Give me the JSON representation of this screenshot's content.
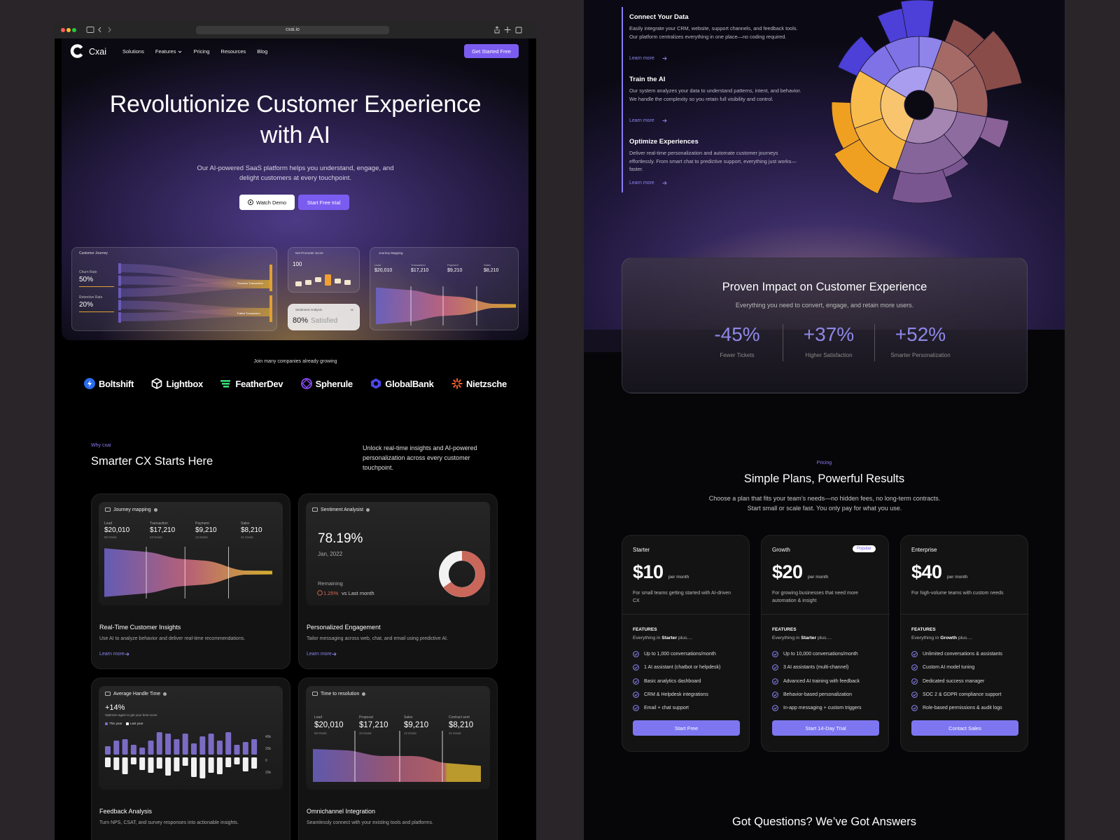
{
  "browser": {
    "url": "cxai.io"
  },
  "nav": {
    "brand": "Cxai",
    "links": [
      "Solutions",
      "Features",
      "Pricing",
      "Resources",
      "Blog"
    ],
    "cta": "Get Started Free"
  },
  "hero": {
    "title_line1": "Revolutionize Customer Experience",
    "title_line2": "with AI",
    "subtitle": "Our AI-powered SaaS platform helps you understand, engage, and delight customers at every touchpoint.",
    "demo_button": "Watch Demo",
    "trial_button": "Start Free trial"
  },
  "hero_widgets": {
    "journey": {
      "title": "Customer Journey",
      "metrics": [
        {
          "label": "Churn Rate",
          "value": "50%"
        },
        {
          "label": "Retention Rate",
          "value": "20%"
        }
      ],
      "outcomes": [
        "Success Transaction",
        "Failed Transaction"
      ]
    },
    "nps": {
      "title": "Net Promoter Score",
      "value": "100"
    },
    "sentiment": {
      "title": "Sentiment Analysis",
      "value": "80%",
      "label": "Satisfied",
      "extra": "+5"
    },
    "mapping": {
      "title": "Journey Mapping",
      "stages": [
        {
          "label": "Lead",
          "value": "$20,010"
        },
        {
          "label": "Transaction",
          "value": "$17,210"
        },
        {
          "label": "Payment",
          "value": "$9,210"
        },
        {
          "label": "Sales",
          "value": "$8,210"
        }
      ]
    }
  },
  "logos": {
    "caption": "Join many companies already growing",
    "companies": [
      "Boltshift",
      "Lightbox",
      "FeatherDev",
      "Spherule",
      "GlobalBank",
      "Nietzsche"
    ]
  },
  "why": {
    "eyebrow": "Why cxai",
    "title": "Smarter CX Starts Here",
    "description": "Unlock real-time insights and AI-powered personalization across every customer touchpoint."
  },
  "features": [
    {
      "widget": {
        "title": "Journey mapping",
        "stages": [
          {
            "label": "Lead",
            "value": "$20,010",
            "note": "80 Deals"
          },
          {
            "label": "Transaction",
            "value": "$17,210",
            "note": "23 Deals"
          },
          {
            "label": "Payment",
            "value": "$9,210",
            "note": "12 Deals"
          },
          {
            "label": "Sales",
            "value": "$8,210",
            "note": "21 Deals"
          }
        ]
      },
      "title": "Real-Time Customer Insights",
      "description": "Use AI to analyze behavior and deliver real-time recommendations.",
      "link": "Learn more"
    },
    {
      "widget": {
        "title": "Sentiment Analysist",
        "value": "78.19%",
        "date": "Jan, 2022",
        "remaining": "Remaining",
        "change": "1.25%",
        "comparison": "vs Last month"
      },
      "title": "Personalized Engagement",
      "description": "Tailor messaging across web, chat, and email using predictive AI.",
      "link": "Learn more"
    },
    {
      "widget": {
        "title": "Average Handle Time",
        "value": "+14%",
        "hint": "Optimize again to get your best score",
        "legend": [
          "This year",
          "Last year"
        ],
        "axis": [
          "40k",
          "20k",
          "0",
          "20k"
        ]
      },
      "title": "Feedback Analysis",
      "description": "Turn NPS, CSAT, and survey responses into actionable insights."
    },
    {
      "widget": {
        "title": "Time to resolution",
        "stages": [
          {
            "label": "Lead",
            "value": "$20,010",
            "note": "80 Deals"
          },
          {
            "label": "Proposal",
            "value": "$17,210",
            "note": "23 Deals"
          },
          {
            "label": "Sales",
            "value": "$9,210",
            "note": "12 Deals"
          },
          {
            "label": "Contract sent",
            "value": "$8,210",
            "note": "21 Deals"
          }
        ]
      },
      "title": "Omnichannel Integration",
      "description": "Seamlessly connect with your existing tools and platforms."
    }
  ],
  "steps": [
    {
      "title": "Connect Your Data",
      "text": "Easily integrate your CRM, website, support channels, and feedback tools. Our platform centralizes everything in one place—no coding required.",
      "link": "Learn more"
    },
    {
      "title": "Train the AI",
      "text": "Our system analyzes your data to understand patterns, intent, and behavior. We handle the complexity so you retain full visibility and control.",
      "link": "Learn more"
    },
    {
      "title": "Optimize Experiences",
      "text": "Deliver real-time personalization and automate customer journeys effortlessly. From smart chat to predictive support, everything just works—faster.",
      "link": "Learn more"
    }
  ],
  "impact": {
    "title": "Proven Impact on Customer Experience",
    "subtitle": "Everything you need to convert, engage, and retain more users.",
    "stats": [
      {
        "value": "-45%",
        "label": "Fewer Tickets"
      },
      {
        "value": "+37%",
        "label": "Higher Satisfaction"
      },
      {
        "value": "+52%",
        "label": "Smarter Personalization"
      }
    ]
  },
  "pricing": {
    "eyebrow": "Pricing",
    "title": "Simple Plans, Powerful Results",
    "subtitle": "Choose a plan that fits your team’s needs—no hidden fees, no long-term contracts. Start small or scale fast. You only pay for what you use.",
    "plans": [
      {
        "name": "Starter",
        "price": "$10",
        "period": "per month",
        "description": "For small teams getting started with AI-driven CX",
        "features_heading": "FEATURES",
        "includes_prefix": "Everything in",
        "includes_plan": "Starter",
        "includes_suffix": "plus....",
        "features": [
          "Up to 1,000 conversations/month",
          "1 AI assistant (chatbot or helpdesk)",
          "Basic analytics dashboard",
          "CRM & Helpdesk integrations",
          "Email + chat support"
        ],
        "cta": "Start Free"
      },
      {
        "name": "Growth",
        "badge": "Popular",
        "price": "$20",
        "period": "per month",
        "description": "For growing businesses that need more automation & insight",
        "features_heading": "FEATURES",
        "includes_prefix": "Everything in",
        "includes_plan": "Starter",
        "includes_suffix": "plus....",
        "features": [
          "Up to 10,000 conversations/month",
          "3 AI assistants (multi-channel)",
          "Advanced AI training with feedback",
          "Behavior-based personalization",
          "In-app messaging + custom triggers"
        ],
        "cta": "Start 14-Day Trial"
      },
      {
        "name": "Enterprise",
        "price": "$40",
        "period": "per month",
        "description": "For high-volume teams with custom needs",
        "features_heading": "FEATURES",
        "includes_prefix": "Everything in",
        "includes_plan": "Growth",
        "includes_suffix": "plus....",
        "features": [
          "Unlimited conversations & assistants",
          "Custom AI model tuning",
          "Dedicated success manager",
          "SOC 2 & GDPR compliance support",
          "Role-based permissions & audit logs"
        ],
        "cta": "Contact Sales"
      }
    ]
  },
  "faq": {
    "title": "Got Questions? We’ve Got Answers"
  }
}
